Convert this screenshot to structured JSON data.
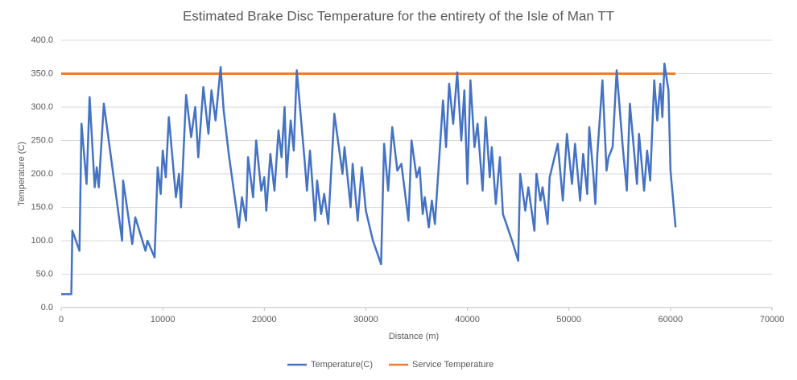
{
  "chart_data": {
    "type": "line",
    "title": "Estimated  Brake Disc Temperature for the entirety of the Isle of Man TT",
    "xlabel": "Distance (m)",
    "ylabel": "Temperature  (C)",
    "xlim": [
      0,
      70000
    ],
    "xticks": [
      0,
      10000,
      20000,
      30000,
      40000,
      50000,
      60000,
      70000
    ],
    "ylim": [
      0,
      400
    ],
    "yticks": [
      {
        "value": 0,
        "label": "0.0"
      },
      {
        "value": 50,
        "label": "50.0"
      },
      {
        "value": 100,
        "label": "100.0"
      },
      {
        "value": 150,
        "label": "150.0"
      },
      {
        "value": 200,
        "label": "200.0"
      },
      {
        "value": 250,
        "label": "250.0"
      },
      {
        "value": 300,
        "label": "300.0"
      },
      {
        "value": 350,
        "label": "350.0"
      },
      {
        "value": 400,
        "label": "400.0"
      }
    ],
    "grid": true,
    "legend": "bottom",
    "series": [
      {
        "name": "Temperature(C)",
        "color": "#4472c4",
        "x": [
          0,
          1000,
          1100,
          1800,
          2000,
          2500,
          2800,
          3300,
          3500,
          3700,
          4200,
          6000,
          6100,
          7000,
          7300,
          8300,
          8500,
          9200,
          9500,
          9800,
          10000,
          10300,
          10600,
          11300,
          11600,
          11800,
          12300,
          12800,
          13200,
          13500,
          14000,
          14500,
          14800,
          15200,
          15700,
          16000,
          16500,
          17500,
          17800,
          18200,
          18400,
          18900,
          19200,
          19700,
          20000,
          20200,
          20600,
          21000,
          21400,
          21700,
          22000,
          22200,
          22600,
          22900,
          23200,
          24000,
          24200,
          24500,
          25000,
          25200,
          25600,
          25900,
          26300,
          26900,
          27700,
          27900,
          28500,
          28700,
          29200,
          29600,
          30000,
          30700,
          31500,
          31800,
          32200,
          32600,
          33100,
          33500,
          34200,
          34500,
          35000,
          35300,
          35600,
          35800,
          36200,
          36500,
          36800,
          37600,
          37900,
          38200,
          38600,
          39000,
          39400,
          39700,
          40000,
          40300,
          40700,
          41000,
          41500,
          41800,
          42200,
          42400,
          42800,
          43200,
          43500,
          44400,
          45000,
          45200,
          45700,
          46000,
          46600,
          46800,
          47200,
          47400,
          47900,
          48100,
          48900,
          49400,
          49800,
          50300,
          50600,
          51100,
          51400,
          51800,
          52000,
          52400,
          52600,
          52800,
          53300,
          53700,
          53900,
          54300,
          54700,
          55300,
          55700,
          56000,
          56700,
          56900,
          57400,
          57700,
          58000,
          58400,
          58700,
          59000,
          59200,
          59400,
          59800,
          60000,
          60500
        ],
        "values": [
          20,
          20,
          115,
          85,
          275,
          185,
          315,
          180,
          210,
          180,
          305,
          100,
          190,
          95,
          135,
          85,
          100,
          75,
          210,
          170,
          235,
          195,
          285,
          165,
          200,
          150,
          318,
          255,
          300,
          225,
          330,
          260,
          325,
          280,
          360,
          295,
          230,
          120,
          165,
          130,
          225,
          165,
          250,
          175,
          195,
          145,
          230,
          175,
          265,
          225,
          300,
          195,
          280,
          235,
          355,
          215,
          175,
          235,
          130,
          190,
          140,
          170,
          125,
          290,
          200,
          240,
          150,
          215,
          130,
          210,
          145,
          100,
          65,
          245,
          175,
          270,
          205,
          215,
          130,
          250,
          195,
          210,
          140,
          165,
          120,
          160,
          125,
          310,
          240,
          335,
          275,
          352,
          250,
          325,
          185,
          340,
          240,
          275,
          175,
          285,
          195,
          240,
          155,
          225,
          140,
          100,
          70,
          200,
          145,
          180,
          115,
          200,
          160,
          180,
          125,
          195,
          245,
          160,
          260,
          185,
          245,
          160,
          230,
          170,
          270,
          200,
          155,
          230,
          340,
          205,
          225,
          240,
          355,
          240,
          175,
          305,
          185,
          260,
          175,
          235,
          190,
          340,
          280,
          335,
          285,
          365,
          325,
          205,
          120
        ]
      },
      {
        "name": "Service Temperature",
        "color": "#ed7d31",
        "x": [
          0,
          60500
        ],
        "values": [
          350,
          350
        ]
      }
    ]
  }
}
